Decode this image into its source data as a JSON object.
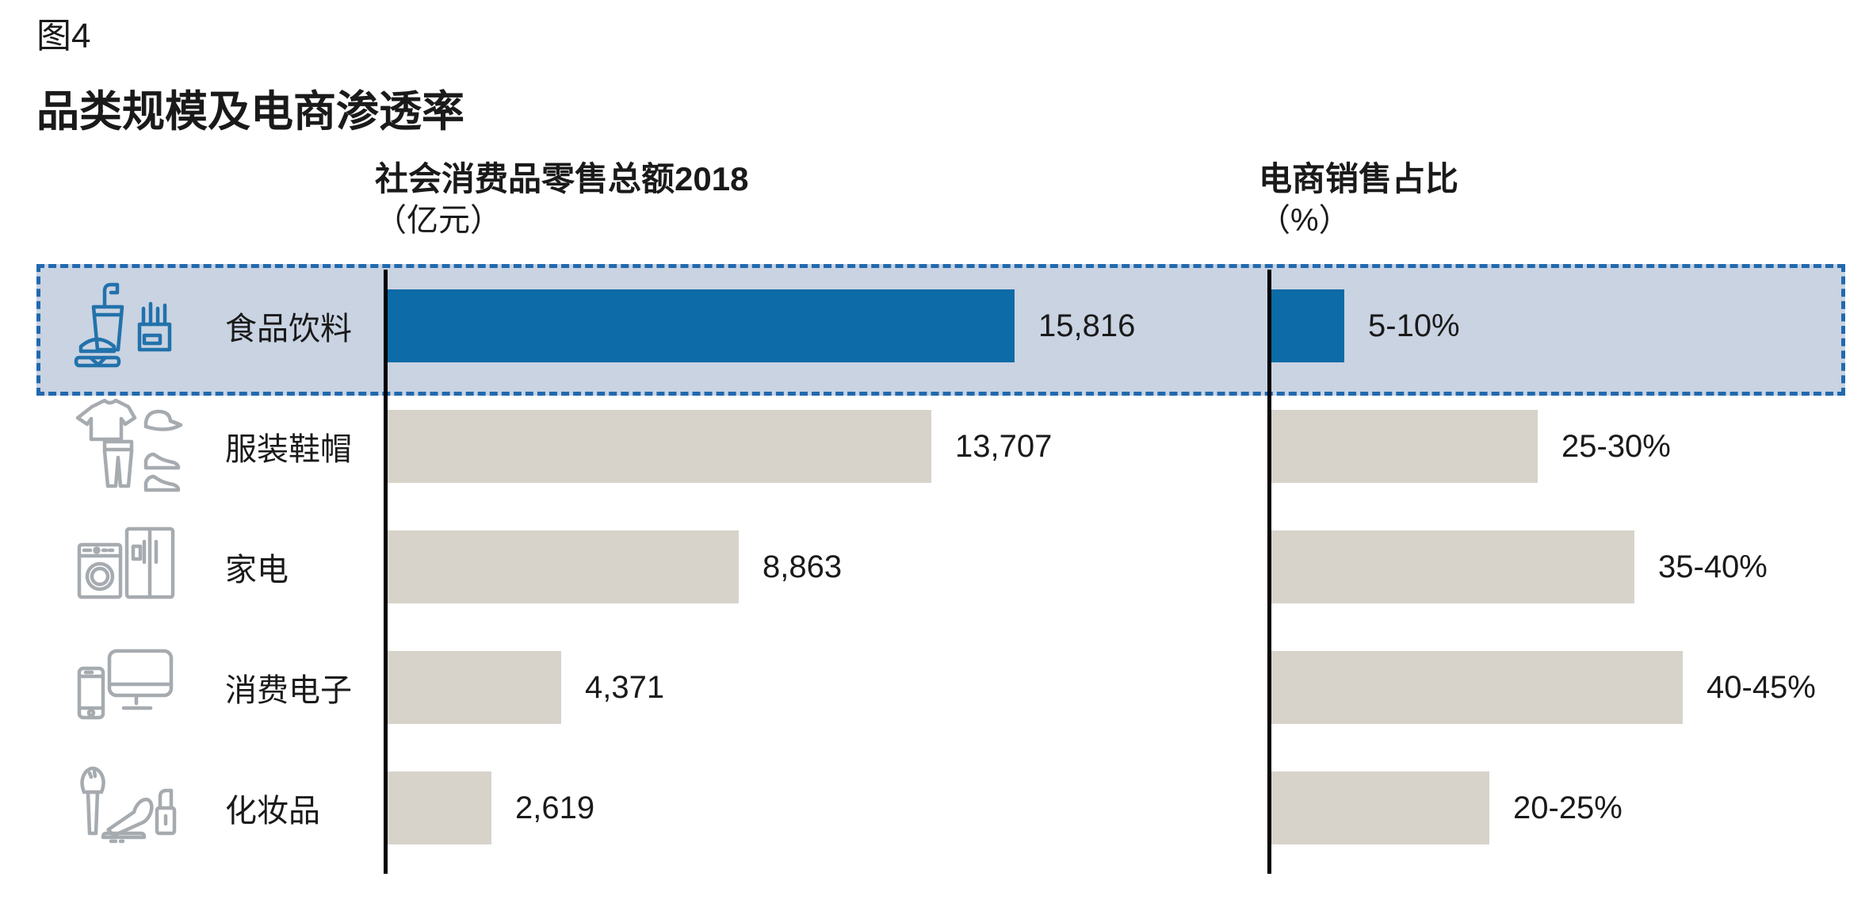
{
  "figure": {
    "label": "图4",
    "title": "品类规模及电商渗透率"
  },
  "chart_data": {
    "type": "bar",
    "orientation": "horizontal",
    "grid": false,
    "legend_position": "none",
    "column_headers": [
      {
        "title": "社会消费品零售总额2018",
        "unit": "（亿元）"
      },
      {
        "title": "电商销售占比",
        "unit": "（%）"
      }
    ],
    "categories": [
      "食品饮料",
      "服装鞋帽",
      "家电",
      "消费电子",
      "化妆品"
    ],
    "series": [
      {
        "name": "社会消费品零售总额2018（亿元）",
        "values": [
          15816,
          13707,
          8863,
          4371,
          2619
        ],
        "value_labels": [
          "15,816",
          "13,707",
          "8,863",
          "4,371",
          "2,619"
        ],
        "xlim": [
          0,
          16000
        ]
      },
      {
        "name": "电商销售占比（%）",
        "values": [
          7.5,
          27.5,
          37.5,
          42.5,
          22.5
        ],
        "ranges": [
          "5-10",
          "25-30",
          "35-40",
          "40-45",
          "20-25"
        ],
        "value_labels": [
          "5-10%",
          "25-30%",
          "35-40%",
          "40-45%",
          "20-25%"
        ],
        "xlim": [
          0,
          45
        ]
      }
    ],
    "highlighted_category": "食品饮料"
  },
  "icons": [
    "food-beverage-icon",
    "apparel-footwear-icon",
    "home-appliance-icon",
    "consumer-electronics-icon",
    "cosmetics-icon"
  ],
  "colors": {
    "accent": "#0d6ba7",
    "bar_gray": "#d7d3ca",
    "highlight_bg": "#c9d3e2",
    "highlight_border": "#2169ae",
    "icon_gray": "#a6abb0",
    "icon_blue": "#2272ab"
  }
}
